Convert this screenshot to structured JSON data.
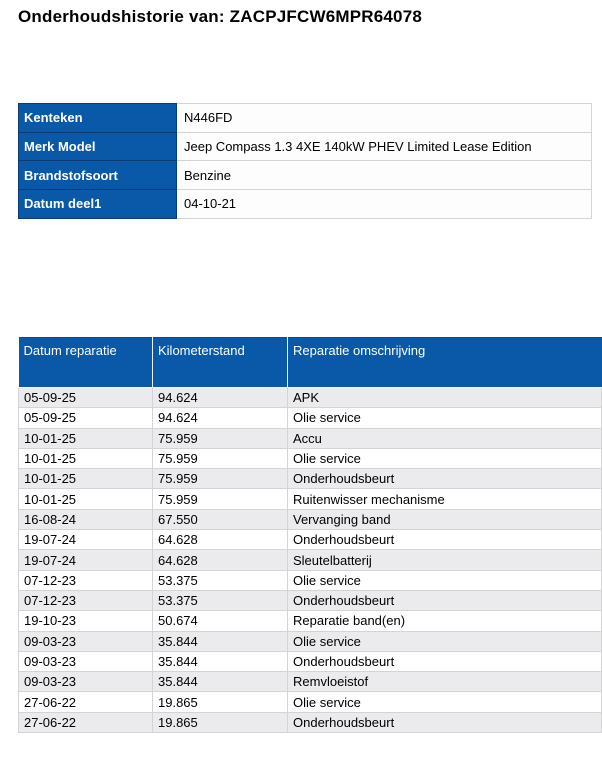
{
  "page": {
    "title": "Onderhoudshistorie van: ZACPJFCW6MPR64078"
  },
  "colors": {
    "table_header_blue": "#0a58a8",
    "table_header_border": "#093c70",
    "row_alt_gray": "#ebebed",
    "grid_line": "#d4d4d8",
    "header_text": "#ffffff",
    "body_text": "#000000"
  },
  "vehicle_info": {
    "rows": [
      {
        "label": "Kenteken",
        "value": "N446FD"
      },
      {
        "label": "Merk Model",
        "value": "Jeep Compass 1.3 4XE 140kW PHEV Limited Lease Edition"
      },
      {
        "label": "Brandstofsoort",
        "value": "Benzine"
      },
      {
        "label": "Datum deel1",
        "value": "04-10-21"
      }
    ]
  },
  "repair_history": {
    "columns": [
      "Datum reparatie",
      "Kilometerstand",
      "Reparatie omschrijving"
    ],
    "rows": [
      {
        "date": "05-09-25",
        "km": "94.624",
        "description": "APK"
      },
      {
        "date": "05-09-25",
        "km": "94.624",
        "description": "Olie service"
      },
      {
        "date": "10-01-25",
        "km": "75.959",
        "description": "Accu"
      },
      {
        "date": "10-01-25",
        "km": "75.959",
        "description": "Olie service"
      },
      {
        "date": "10-01-25",
        "km": "75.959",
        "description": "Onderhoudsbeurt"
      },
      {
        "date": "10-01-25",
        "km": "75.959",
        "description": "Ruitenwisser mechanisme"
      },
      {
        "date": "16-08-24",
        "km": "67.550",
        "description": "Vervanging band"
      },
      {
        "date": "19-07-24",
        "km": "64.628",
        "description": "Onderhoudsbeurt"
      },
      {
        "date": "19-07-24",
        "km": "64.628",
        "description": "Sleutelbatterij"
      },
      {
        "date": "07-12-23",
        "km": "53.375",
        "description": "Olie service"
      },
      {
        "date": "07-12-23",
        "km": "53.375",
        "description": "Onderhoudsbeurt"
      },
      {
        "date": "19-10-23",
        "km": "50.674",
        "description": "Reparatie band(en)"
      },
      {
        "date": "09-03-23",
        "km": "35.844",
        "description": "Olie service"
      },
      {
        "date": "09-03-23",
        "km": "35.844",
        "description": "Onderhoudsbeurt"
      },
      {
        "date": "09-03-23",
        "km": "35.844",
        "description": "Remvloeistof"
      },
      {
        "date": "27-06-22",
        "km": "19.865",
        "description": "Olie service"
      },
      {
        "date": "27-06-22",
        "km": "19.865",
        "description": "Onderhoudsbeurt"
      }
    ]
  }
}
